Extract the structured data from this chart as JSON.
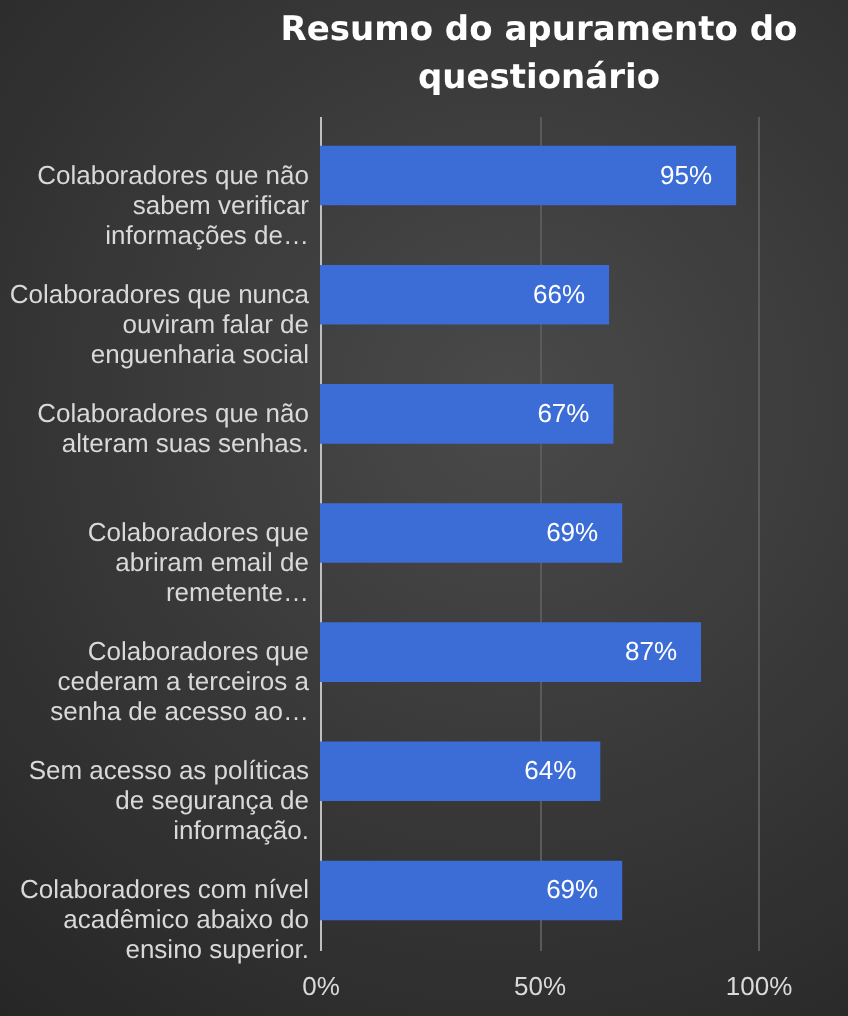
{
  "chart_data": {
    "type": "bar",
    "orientation": "horizontal",
    "title": "Resumo do apuramento do questionário",
    "categories": [
      "Colaboradores que não\nsabem verificar\ninformações de…",
      "Colaboradores que nunca\nouviram falar de\nenguenharia social",
      "Colaboradores que não\nalteram suas senhas.",
      "Colaboradores que\nabriram email de\nremetente…",
      "Colaboradores que\ncederam a terceiros a\nsenha de acesso ao…",
      "Sem acesso as políticas\nde segurança de\ninformação.",
      "Colaboradores com nível\nacadêmico abaixo do\nensino superior."
    ],
    "values": [
      95,
      66,
      67,
      69,
      87,
      64,
      69
    ],
    "value_labels": [
      "95%",
      "66%",
      "67%",
      "69%",
      "87%",
      "64%",
      "69%"
    ],
    "color": "#3c6dd6",
    "xlim": [
      0,
      100
    ],
    "xticks": [
      {
        "value": 0,
        "label": "0%"
      },
      {
        "value": 50,
        "label": "50%"
      },
      {
        "value": 100,
        "label": "100%"
      }
    ],
    "grid": "x"
  }
}
